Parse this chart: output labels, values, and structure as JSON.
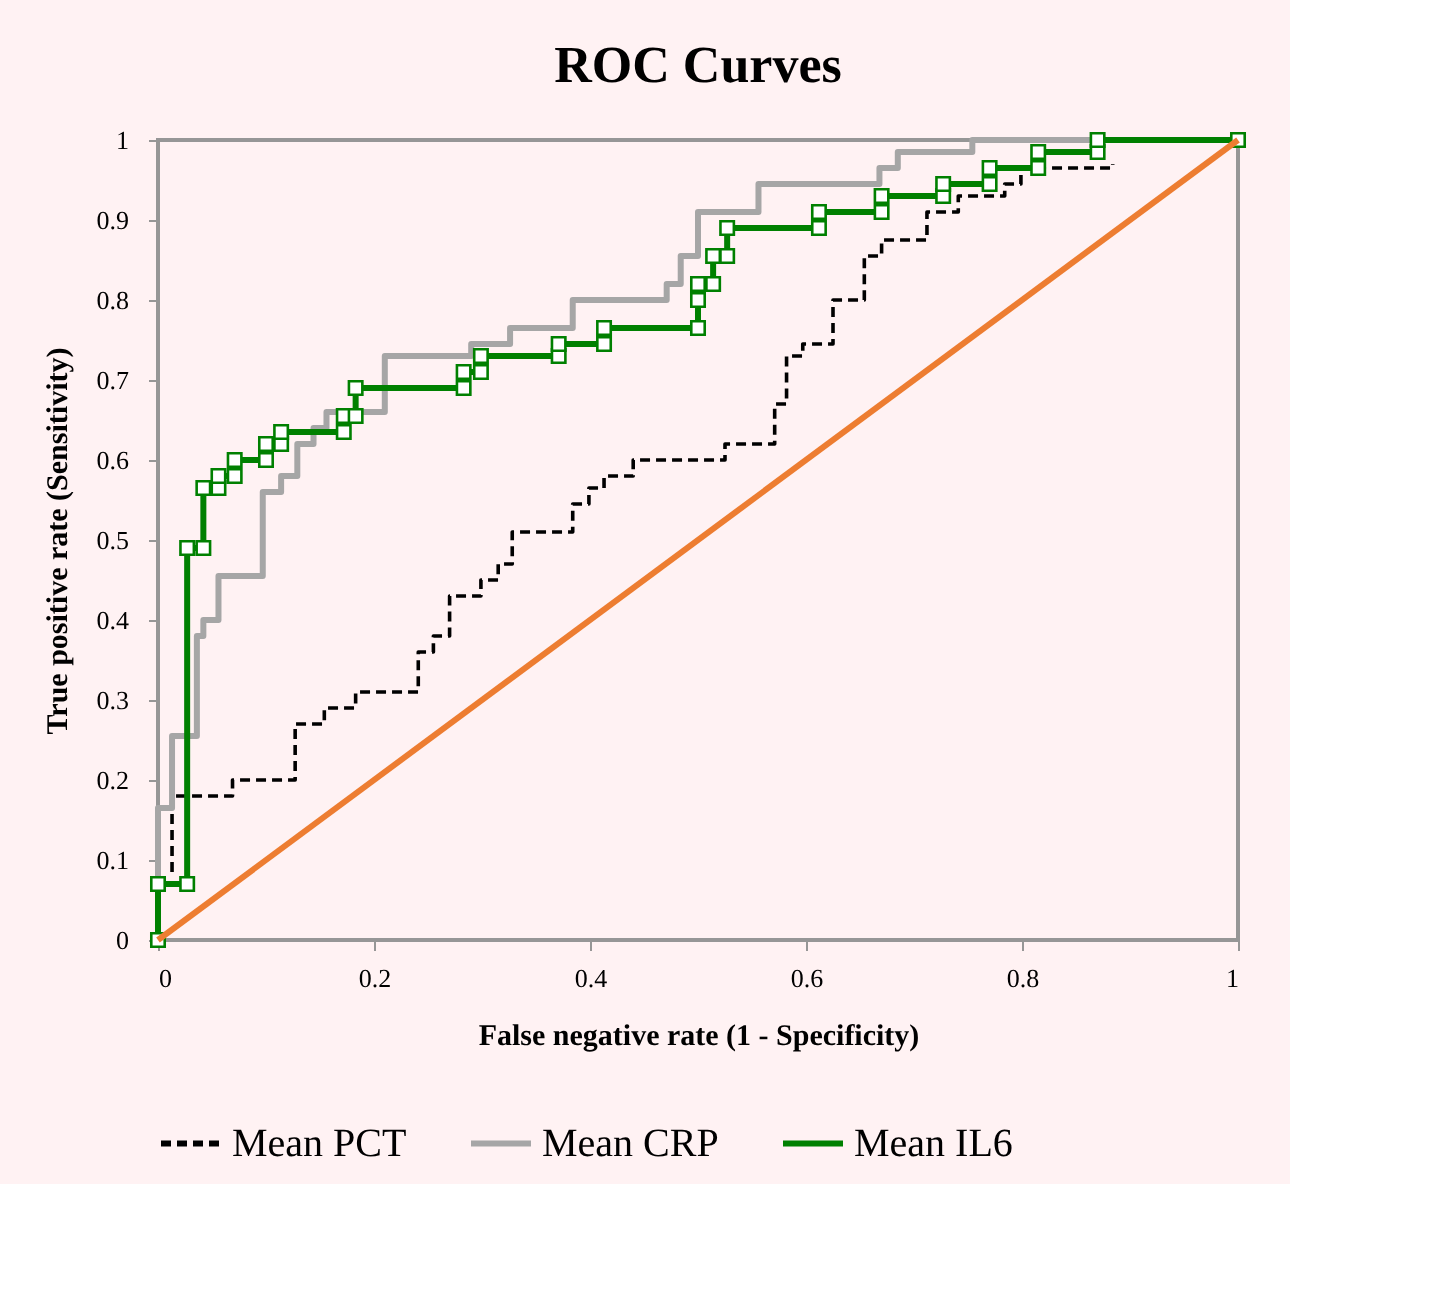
{
  "chart_data": {
    "type": "line",
    "title": "ROC Curves",
    "xlabel": "False negative rate (1 - Specificity)",
    "ylabel": "True positive rate (Sensitivity)",
    "xlim": [
      0,
      1
    ],
    "ylim": [
      0,
      1
    ],
    "xticks": [
      0,
      0.2,
      0.4,
      0.6,
      0.8,
      1
    ],
    "yticks": [
      0,
      0.1,
      0.2,
      0.3,
      0.4,
      0.5,
      0.6,
      0.7,
      0.8,
      0.9,
      1
    ],
    "grid": false,
    "legend": "bottom",
    "series": [
      {
        "name": "Mean PCT",
        "color": "#000000",
        "line_style": "dashed",
        "marker": "none",
        "x": [
          0.013,
          0.013,
          0.069,
          0.069,
          0.127,
          0.127,
          0.154,
          0.154,
          0.183,
          0.183,
          0.241,
          0.241,
          0.255,
          0.255,
          0.27,
          0.27,
          0.299,
          0.299,
          0.315,
          0.315,
          0.328,
          0.328,
          0.384,
          0.384,
          0.399,
          0.399,
          0.413,
          0.413,
          0.44,
          0.44,
          0.525,
          0.525,
          0.571,
          0.571,
          0.582,
          0.582,
          0.597,
          0.597,
          0.625,
          0.625,
          0.654,
          0.654,
          0.67,
          0.67,
          0.712,
          0.712,
          0.741,
          0.741,
          0.784,
          0.784,
          0.799,
          0.799,
          0.884,
          0.884
        ],
        "values": [
          0.085,
          0.18,
          0.18,
          0.2,
          0.2,
          0.27,
          0.27,
          0.29,
          0.29,
          0.31,
          0.31,
          0.36,
          0.36,
          0.38,
          0.38,
          0.43,
          0.43,
          0.45,
          0.45,
          0.47,
          0.47,
          0.51,
          0.51,
          0.545,
          0.545,
          0.565,
          0.565,
          0.58,
          0.58,
          0.6,
          0.6,
          0.62,
          0.62,
          0.67,
          0.67,
          0.73,
          0.73,
          0.745,
          0.745,
          0.8,
          0.8,
          0.855,
          0.855,
          0.875,
          0.875,
          0.91,
          0.91,
          0.93,
          0.93,
          0.945,
          0.945,
          0.965,
          0.965,
          0.97
        ]
      },
      {
        "name": "Mean CRP",
        "color": "#a6a6a6",
        "line_style": "solid",
        "marker": "none",
        "x": [
          0,
          0,
          0.013,
          0.013,
          0.036,
          0.036,
          0.042,
          0.042,
          0.056,
          0.056,
          0.097,
          0.097,
          0.114,
          0.114,
          0.129,
          0.129,
          0.144,
          0.144,
          0.156,
          0.156,
          0.21,
          0.21,
          0.29,
          0.29,
          0.326,
          0.326,
          0.384,
          0.384,
          0.471,
          0.471,
          0.484,
          0.484,
          0.5,
          0.5,
          0.556,
          0.556,
          0.668,
          0.668,
          0.685,
          0.685,
          0.754,
          0.754,
          1
        ],
        "values": [
          0,
          0.165,
          0.165,
          0.255,
          0.255,
          0.38,
          0.38,
          0.4,
          0.4,
          0.455,
          0.455,
          0.56,
          0.56,
          0.58,
          0.58,
          0.62,
          0.62,
          0.64,
          0.64,
          0.66,
          0.66,
          0.73,
          0.73,
          0.745,
          0.745,
          0.765,
          0.765,
          0.8,
          0.8,
          0.82,
          0.82,
          0.855,
          0.855,
          0.91,
          0.91,
          0.945,
          0.945,
          0.965,
          0.965,
          0.985,
          0.985,
          1,
          1
        ]
      },
      {
        "name": "Mean IL6",
        "color": "#008000",
        "line_style": "solid",
        "marker": "square",
        "x": [
          0,
          0,
          0.027,
          0.027,
          0.042,
          0.042,
          0.056,
          0.056,
          0.071,
          0.071,
          0.1,
          0.1,
          0.114,
          0.114,
          0.172,
          0.172,
          0.183,
          0.183,
          0.283,
          0.283,
          0.299,
          0.299,
          0.371,
          0.371,
          0.413,
          0.413,
          0.5,
          0.5,
          0.5,
          0.514,
          0.514,
          0.527,
          0.527,
          0.612,
          0.612,
          0.67,
          0.67,
          0.727,
          0.727,
          0.77,
          0.77,
          0.815,
          0.815,
          0.87,
          0.87,
          1
        ],
        "values": [
          0,
          0.07,
          0.07,
          0.49,
          0.49,
          0.565,
          0.565,
          0.58,
          0.58,
          0.6,
          0.6,
          0.62,
          0.62,
          0.635,
          0.635,
          0.655,
          0.655,
          0.69,
          0.69,
          0.71,
          0.71,
          0.73,
          0.73,
          0.745,
          0.745,
          0.765,
          0.765,
          0.8,
          0.82,
          0.82,
          0.855,
          0.855,
          0.89,
          0.89,
          0.91,
          0.91,
          0.93,
          0.93,
          0.945,
          0.945,
          0.965,
          0.965,
          0.985,
          0.985,
          1,
          1
        ]
      },
      {
        "color": "#ed7d31",
        "line_style": "solid",
        "marker": "none",
        "x": [
          0,
          1
        ],
        "values": [
          0,
          1
        ]
      }
    ]
  }
}
